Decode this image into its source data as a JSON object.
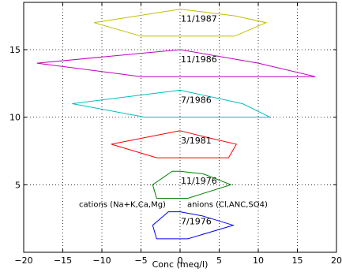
{
  "chart_data": {
    "type": "line",
    "xlabel": "Conc (meq/l)",
    "ylabel": "",
    "xlim": [
      -20,
      20
    ],
    "ylim": [
      0,
      18.5
    ],
    "xticks": [
      -20,
      -15,
      -10,
      -5,
      0,
      5,
      10,
      15,
      20
    ],
    "yticks": [
      5,
      10,
      15
    ],
    "grid": true,
    "annotations": {
      "cations": "cations (Na+K,Ca,Mg)",
      "anions": "anions (Cl,ANC,SO4)"
    },
    "series": [
      {
        "name": "7/1976",
        "color": "#0000ff",
        "points": [
          [
            0,
            3
          ],
          [
            2.8,
            2.7
          ],
          [
            6.8,
            2
          ],
          [
            1,
            1
          ],
          [
            -3,
            1
          ],
          [
            -3.5,
            2
          ],
          [
            -1.5,
            3
          ],
          [
            0,
            3
          ]
        ]
      },
      {
        "name": "11/1976",
        "color": "#008000",
        "points": [
          [
            0,
            6
          ],
          [
            3,
            5.8
          ],
          [
            6.5,
            5
          ],
          [
            1,
            4
          ],
          [
            -3,
            4
          ],
          [
            -3.5,
            5
          ],
          [
            -1,
            6
          ],
          [
            0,
            6
          ]
        ]
      },
      {
        "name": "3/1981",
        "color": "#ff0000",
        "points": [
          [
            0,
            9
          ],
          [
            3.5,
            8.5
          ],
          [
            7.2,
            8
          ],
          [
            6.2,
            7
          ],
          [
            -3,
            7
          ],
          [
            -8.8,
            8
          ],
          [
            0,
            9
          ]
        ]
      },
      {
        "name": "7/1986",
        "color": "#00bfbf",
        "points": [
          [
            0,
            12
          ],
          [
            8,
            11
          ],
          [
            11.5,
            10
          ],
          [
            -4.5,
            10
          ],
          [
            -13.8,
            11
          ],
          [
            0,
            12
          ]
        ]
      },
      {
        "name": "11/1986",
        "color": "#bf00bf",
        "points": [
          [
            0,
            15
          ],
          [
            10,
            14
          ],
          [
            17.3,
            13
          ],
          [
            -5,
            13
          ],
          [
            -18.3,
            14
          ],
          [
            0,
            15
          ]
        ]
      },
      {
        "name": "11/1987",
        "color": "#bfbf00",
        "points": [
          [
            0,
            18
          ],
          [
            7,
            17.5
          ],
          [
            11,
            17
          ],
          [
            7,
            16
          ],
          [
            -5,
            16
          ],
          [
            -11,
            17
          ],
          [
            0,
            18
          ]
        ]
      }
    ]
  }
}
